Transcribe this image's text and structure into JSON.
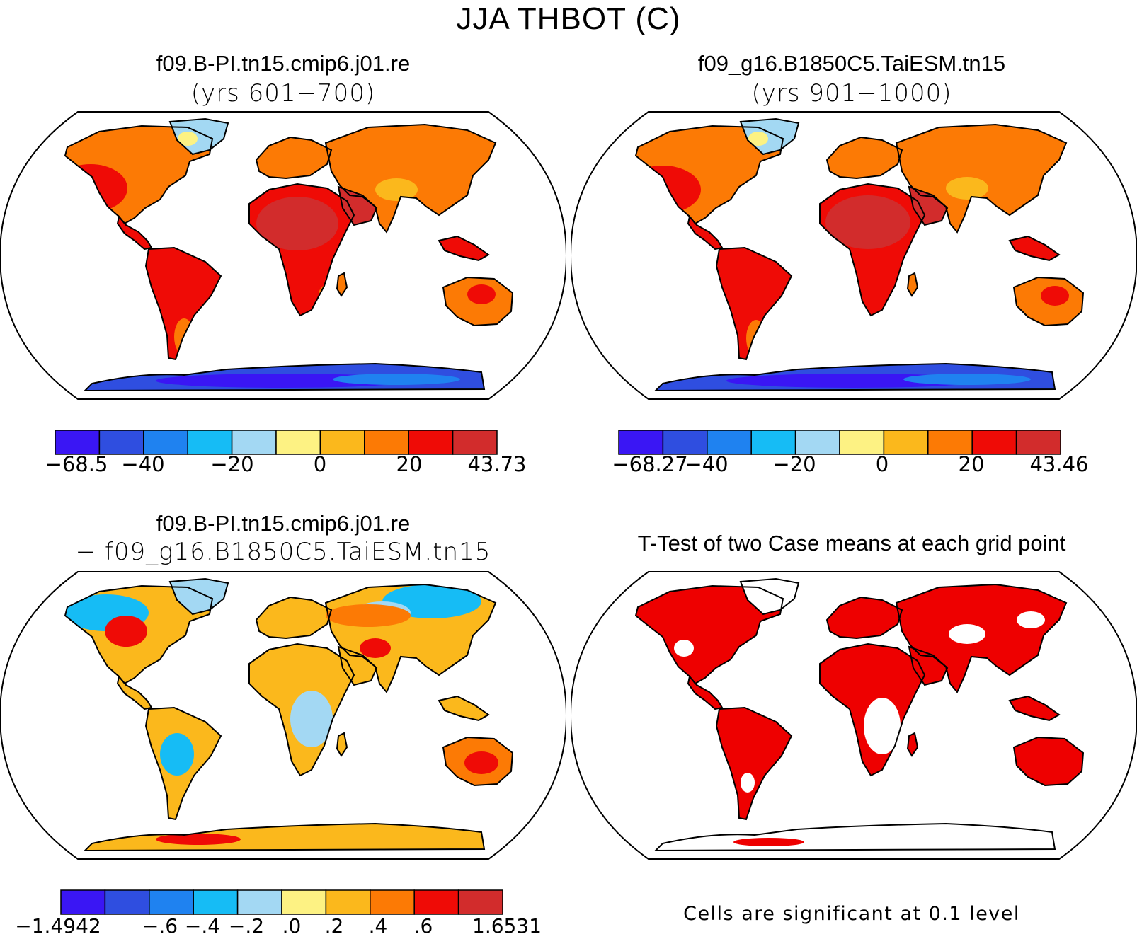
{
  "page": {
    "main_title": "JJA THBOT (C)"
  },
  "panels": [
    {
      "title": "f09.B-PI.tn15.cmip6.j01.re",
      "subtitle": "(yrs 601−700)"
    },
    {
      "title": "f09_g16.B1850C5.TaiESM.tn15",
      "subtitle": "(yrs 901−1000)"
    },
    {
      "title": "f09.B-PI.tn15.cmip6.j01.re",
      "subtitle": "− f09_g16.B1850C5.TaiESM.tn15"
    },
    {
      "title": "T-Test of two Case means at each grid point",
      "subtitle": ""
    }
  ],
  "significance_note": "Cells are significant at 0.1 level",
  "colors": {
    "map_border": "#000000",
    "ttest_fill": "#ee0000",
    "palette": [
      "#3a16f4",
      "#2f4ee0",
      "#1f82f0",
      "#16bcf5",
      "#a3d8f3",
      "#fdf283",
      "#fbb81c",
      "#fc7a05",
      "#ef0b06",
      "#d22c2c"
    ]
  },
  "chart_data": [
    {
      "type": "heatmap",
      "title": "f09.B-PI.tn15.cmip6.j01.re",
      "subtitle": "(yrs 601−700)",
      "projection": "Robinson (world)",
      "colorbar": {
        "bins": 10,
        "tick_labels": [
          "−68.5",
          "−40",
          "−20",
          "0",
          "20",
          "43.73"
        ],
        "colors": [
          "#3a16f4",
          "#2f4ee0",
          "#1f82f0",
          "#16bcf5",
          "#a3d8f3",
          "#fdf283",
          "#fbb81c",
          "#fc7a05",
          "#ef0b06",
          "#d22c2c"
        ]
      }
    },
    {
      "type": "heatmap",
      "title": "f09_g16.B1850C5.TaiESM.tn15",
      "subtitle": "(yrs 901−1000)",
      "projection": "Robinson (world)",
      "colorbar": {
        "bins": 10,
        "tick_labels": [
          "−68.27",
          "−40",
          "−20",
          "0",
          "20",
          "43.46"
        ],
        "colors": [
          "#3a16f4",
          "#2f4ee0",
          "#1f82f0",
          "#16bcf5",
          "#a3d8f3",
          "#fdf283",
          "#fbb81c",
          "#fc7a05",
          "#ef0b06",
          "#d22c2c"
        ]
      }
    },
    {
      "type": "heatmap",
      "title": "f09.B-PI.tn15.cmip6.j01.re",
      "subtitle": "− f09_g16.B1850C5.TaiESM.tn15",
      "projection": "Robinson (world)",
      "colorbar": {
        "bins": 10,
        "tick_labels": [
          "−1.4942",
          "−.6",
          "−.4",
          "−.2",
          ".0",
          ".2",
          ".4",
          ".6",
          "1.6531"
        ],
        "colors": [
          "#3a16f4",
          "#2f4ee0",
          "#1f82f0",
          "#16bcf5",
          "#a3d8f3",
          "#fdf283",
          "#fbb81c",
          "#fc7a05",
          "#ef0b06",
          "#d22c2c"
        ]
      }
    },
    {
      "type": "heatmap",
      "title": "T-Test of two Case means at each grid point",
      "projection": "Robinson (world)",
      "note": "Cells are significant at 0.1 level"
    }
  ]
}
